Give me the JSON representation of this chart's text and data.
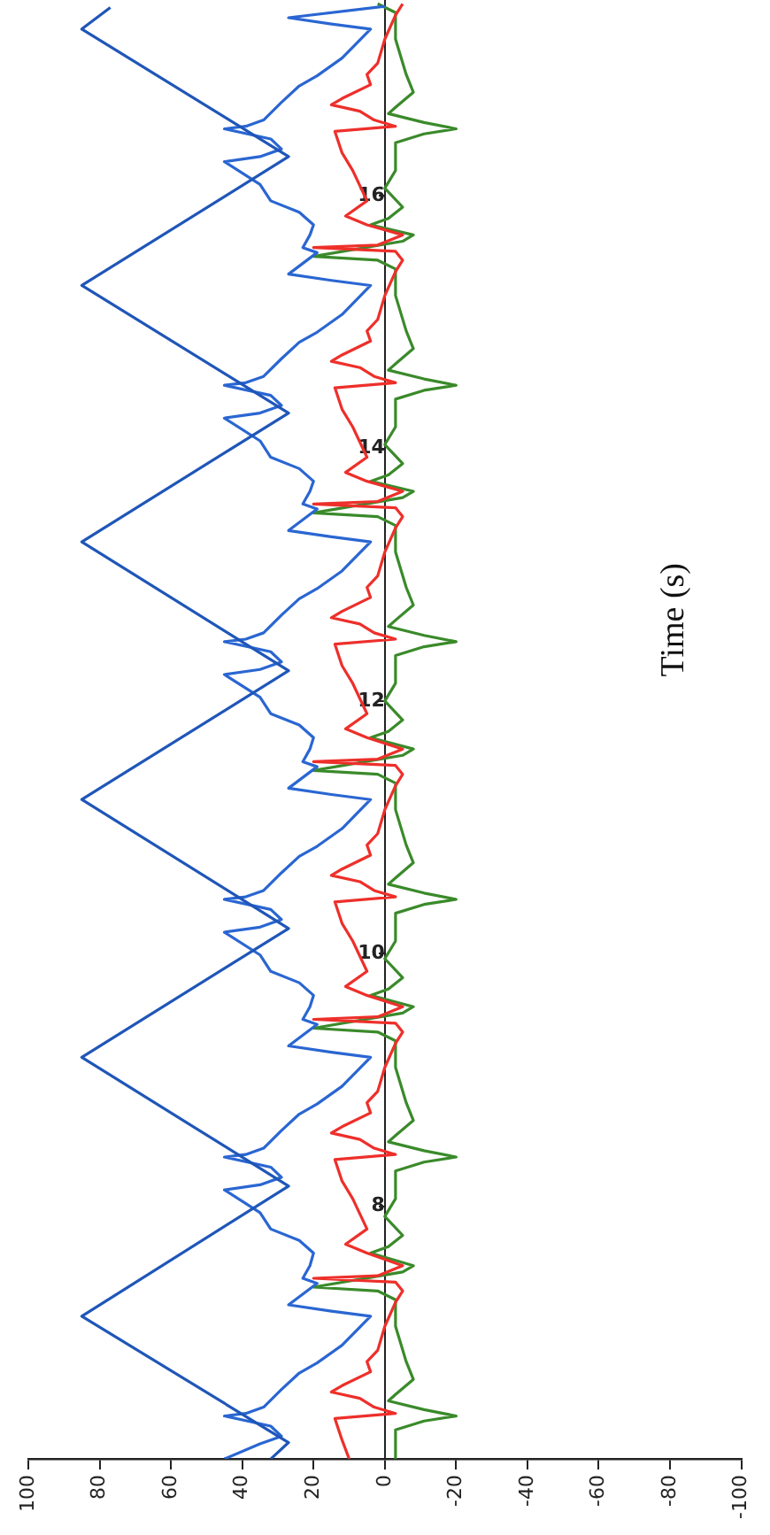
{
  "chart_data": {
    "type": "line",
    "ylabel": "Time (s)",
    "ylim": [
      6,
      17.55
    ],
    "yticks": [
      8,
      10,
      12,
      14,
      16
    ],
    "xlim": [
      100,
      -100
    ],
    "xticks": [
      100,
      80,
      60,
      40,
      20,
      0,
      -20,
      -40,
      -60,
      -80,
      -100
    ],
    "grid": false,
    "legend": false,
    "marker": "none",
    "line_style": "solid",
    "series": [
      {
        "color": "#1f56b8",
        "values": [
          6.0,
          6.13,
          7.13,
          8.16,
          9.18,
          10.2,
          11.22,
          12.24,
          13.26,
          14.28,
          15.29,
          16.31,
          17.32,
          17.49
        ],
        "x": [
          32,
          27,
          85,
          27,
          85,
          27,
          85,
          27,
          85,
          27,
          85,
          27,
          85,
          77
        ]
      },
      {
        "color": "#2a66d2",
        "values": [
          6.0,
          6.12,
          6.18,
          6.26,
          6.34,
          6.36,
          6.41,
          6.55,
          6.68,
          6.76,
          6.9,
          7.13,
          7.17,
          7.22,
          7.39,
          7.43,
          7.53,
          7.63,
          7.73,
          7.82,
          7.95,
          8.13,
          8.17,
          8.23,
          8.31,
          8.39,
          8.41,
          8.46,
          8.6,
          8.73,
          8.81,
          8.95,
          9.18,
          9.22,
          9.27,
          9.44,
          9.48,
          9.58,
          9.67,
          9.77,
          9.86,
          9.99,
          10.17,
          10.21,
          10.27,
          10.35,
          10.43,
          10.45,
          10.5,
          10.64,
          10.77,
          10.85,
          10.99,
          11.22,
          11.26,
          11.31,
          11.48,
          11.52,
          11.62,
          11.71,
          11.81,
          11.9,
          12.03,
          12.21,
          12.25,
          12.31,
          12.39,
          12.47,
          12.49,
          12.54,
          12.68,
          12.81,
          12.89,
          13.03,
          13.26,
          13.3,
          13.35,
          13.52,
          13.56,
          13.66,
          13.74,
          13.84,
          13.93,
          14.06,
          14.24,
          14.28,
          14.34,
          14.42,
          14.5,
          14.52,
          14.57,
          14.71,
          14.84,
          14.92,
          15.06,
          15.29,
          15.33,
          15.38,
          15.55,
          15.59,
          15.69,
          15.77,
          15.87,
          15.96,
          16.09,
          16.27,
          16.31,
          16.37,
          16.45,
          16.53,
          16.55,
          16.6,
          16.74,
          16.87,
          16.95,
          17.09,
          17.32,
          17.36,
          17.41,
          17.5
        ],
        "x": [
          45,
          35,
          29,
          32,
          45,
          39,
          34,
          29,
          24,
          19,
          12,
          4,
          15,
          27,
          19,
          23,
          21,
          20,
          24,
          32,
          35,
          45,
          35,
          29,
          32,
          45,
          39,
          34,
          29,
          24,
          19,
          12,
          4,
          15,
          27,
          19,
          23,
          21,
          20,
          24,
          32,
          35,
          45,
          35,
          29,
          32,
          45,
          39,
          34,
          29,
          24,
          19,
          12,
          4,
          15,
          27,
          19,
          23,
          21,
          20,
          24,
          32,
          35,
          45,
          35,
          29,
          32,
          45,
          39,
          34,
          29,
          24,
          19,
          12,
          4,
          15,
          27,
          19,
          23,
          21,
          20,
          24,
          32,
          35,
          45,
          35,
          29,
          32,
          45,
          39,
          34,
          29,
          24,
          19,
          12,
          4,
          15,
          27,
          19,
          23,
          21,
          20,
          24,
          32,
          35,
          45,
          35,
          29,
          32,
          45,
          39,
          34,
          29,
          24,
          19,
          12,
          4,
          15,
          27,
          0
        ]
      },
      {
        "color": "#ee2f2a",
        "values": [
          6.0,
          6.15,
          6.32,
          6.36,
          6.41,
          6.48,
          6.53,
          6.58,
          6.69,
          6.77,
          6.86,
          7.05,
          7.24,
          7.33,
          7.4,
          7.43,
          7.45,
          7.53,
          7.63,
          7.7,
          7.82,
          8.06,
          8.2,
          8.37,
          8.41,
          8.46,
          8.53,
          8.58,
          8.63,
          8.74,
          8.82,
          8.91,
          9.1,
          9.29,
          9.38,
          9.45,
          9.48,
          9.5,
          9.58,
          9.67,
          9.74,
          9.86,
          10.1,
          10.24,
          10.41,
          10.45,
          10.5,
          10.57,
          10.62,
          10.67,
          10.78,
          10.86,
          10.95,
          11.14,
          11.33,
          11.42,
          11.49,
          11.52,
          11.54,
          11.62,
          11.71,
          11.78,
          11.9,
          12.14,
          12.28,
          12.45,
          12.49,
          12.54,
          12.61,
          12.66,
          12.71,
          12.82,
          12.9,
          12.99,
          13.18,
          13.37,
          13.46,
          13.53,
          13.56,
          13.58,
          13.66,
          13.74,
          13.81,
          13.93,
          14.17,
          14.31,
          14.48,
          14.52,
          14.57,
          14.64,
          14.69,
          14.74,
          14.85,
          14.93,
          15.02,
          15.21,
          15.4,
          15.49,
          15.56,
          15.59,
          15.61,
          15.69,
          15.77,
          15.84,
          15.96,
          16.2,
          16.34,
          16.51,
          16.55,
          16.6,
          16.67,
          16.72,
          16.77,
          16.88,
          16.96,
          17.05,
          17.24,
          17.43,
          17.52
        ],
        "x": [
          10,
          12,
          14,
          -3,
          3,
          7,
          15,
          12,
          4,
          5,
          2,
          0,
          -3,
          -5,
          -3,
          20,
          2,
          -5,
          5,
          11,
          5,
          9,
          12,
          14,
          -3,
          3,
          7,
          15,
          12,
          4,
          5,
          2,
          0,
          -3,
          -5,
          -3,
          20,
          2,
          -5,
          5,
          11,
          5,
          9,
          12,
          14,
          -3,
          3,
          7,
          15,
          12,
          4,
          5,
          2,
          0,
          -3,
          -5,
          -3,
          20,
          2,
          -5,
          5,
          11,
          5,
          9,
          12,
          14,
          -3,
          3,
          7,
          15,
          12,
          4,
          5,
          2,
          0,
          -3,
          -5,
          -3,
          20,
          2,
          -5,
          5,
          11,
          5,
          9,
          12,
          14,
          -3,
          3,
          7,
          15,
          12,
          4,
          5,
          2,
          0,
          -3,
          -5,
          -3,
          20,
          2,
          -5,
          5,
          11,
          5,
          9,
          12,
          14,
          -3,
          3,
          7,
          15,
          12,
          4,
          5,
          2,
          0,
          -3,
          -5
        ]
      },
      {
        "color": "#3a8a2a",
        "values": [
          6.0,
          6.23,
          6.3,
          6.34,
          6.39,
          6.46,
          6.51,
          6.63,
          6.77,
          7.05,
          7.26,
          7.33,
          7.36,
          7.48,
          7.53,
          7.63,
          7.68,
          7.77,
          7.92,
          8.06,
          8.28,
          8.35,
          8.39,
          8.44,
          8.51,
          8.56,
          8.68,
          8.82,
          9.1,
          9.31,
          9.38,
          9.41,
          9.53,
          9.58,
          9.67,
          9.72,
          9.81,
          9.96,
          10.1,
          10.32,
          10.39,
          10.43,
          10.48,
          10.55,
          10.6,
          10.72,
          10.86,
          11.14,
          11.35,
          11.42,
          11.45,
          11.57,
          11.62,
          11.71,
          11.76,
          11.85,
          12.0,
          12.14,
          12.36,
          12.43,
          12.47,
          12.52,
          12.59,
          12.64,
          12.76,
          12.9,
          13.18,
          13.39,
          13.46,
          13.49,
          13.61,
          13.66,
          13.74,
          13.79,
          13.88,
          14.03,
          14.17,
          14.39,
          14.46,
          14.5,
          14.55,
          14.62,
          14.67,
          14.79,
          14.93,
          15.21,
          15.42,
          15.49,
          15.52,
          15.64,
          15.69,
          15.77,
          15.82,
          15.91,
          16.06,
          16.2,
          16.42,
          16.49,
          16.53,
          16.58,
          16.65,
          16.7,
          16.82,
          16.96,
          17.24,
          17.45,
          17.52
        ],
        "x": [
          -3,
          -3,
          -11,
          -20,
          -11,
          -1,
          -3,
          -8,
          -6,
          -3,
          -3,
          2,
          20,
          -5,
          -8,
          4,
          -1,
          -5,
          0,
          -3,
          -3,
          -11,
          -20,
          -11,
          -1,
          -3,
          -8,
          -6,
          -3,
          -3,
          2,
          20,
          -5,
          -8,
          4,
          -1,
          -5,
          0,
          -3,
          -3,
          -11,
          -20,
          -11,
          -1,
          -3,
          -8,
          -6,
          -3,
          -3,
          2,
          20,
          -5,
          -8,
          4,
          -1,
          -5,
          0,
          -3,
          -3,
          -11,
          -20,
          -11,
          -1,
          -3,
          -8,
          -6,
          -3,
          -3,
          2,
          20,
          -5,
          -8,
          4,
          -1,
          -5,
          0,
          -3,
          -3,
          -11,
          -20,
          -11,
          -1,
          -3,
          -8,
          -6,
          -3,
          -3,
          2,
          20,
          -5,
          -8,
          4,
          -1,
          -5,
          0,
          -3,
          -3,
          -11,
          -20,
          -11,
          -1,
          -3,
          -8,
          -6,
          -3,
          -3,
          2
        ]
      }
    ]
  }
}
